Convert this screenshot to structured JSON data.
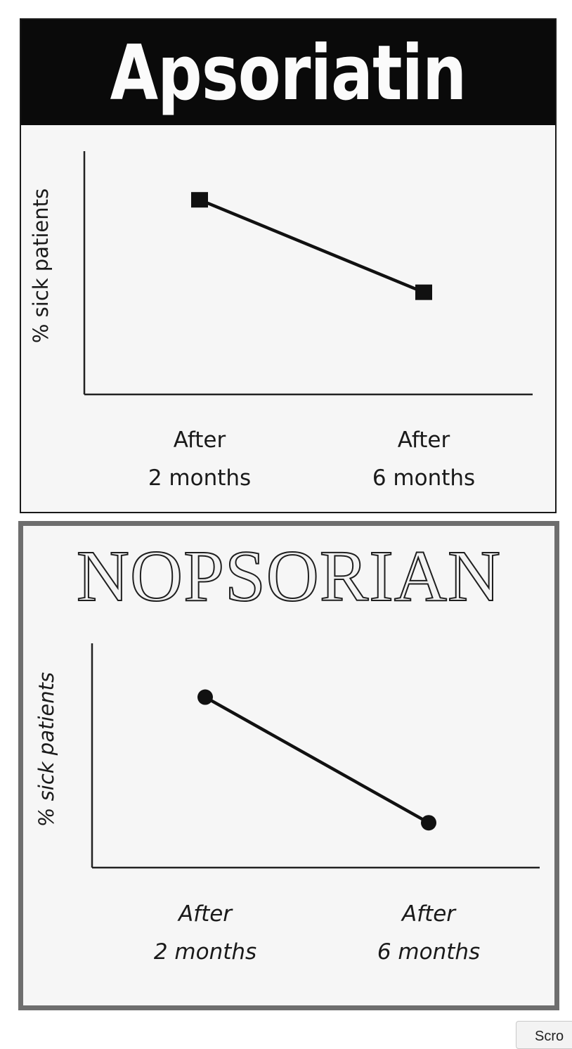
{
  "chart_data": [
    {
      "type": "line",
      "title": "Apsoriatin",
      "ylabel": "% sick patients",
      "categories": [
        "After\n2 months",
        "After\n6 months"
      ],
      "series": [
        {
          "values": [
            80,
            42
          ],
          "marker": "square",
          "color": "#111111"
        }
      ],
      "ylim": [
        0,
        100
      ],
      "yticks_shown": false,
      "grid": false
    },
    {
      "type": "line",
      "title": "NOPSORIAN",
      "ylabel": "% sick patients",
      "categories": [
        "After\n2 months",
        "After\n6 months"
      ],
      "series": [
        {
          "values": [
            76,
            20
          ],
          "marker": "circle",
          "color": "#111111"
        }
      ],
      "ylim": [
        0,
        100
      ],
      "yticks_shown": false,
      "grid": false
    }
  ],
  "scroll_button": {
    "label": "Scro"
  }
}
